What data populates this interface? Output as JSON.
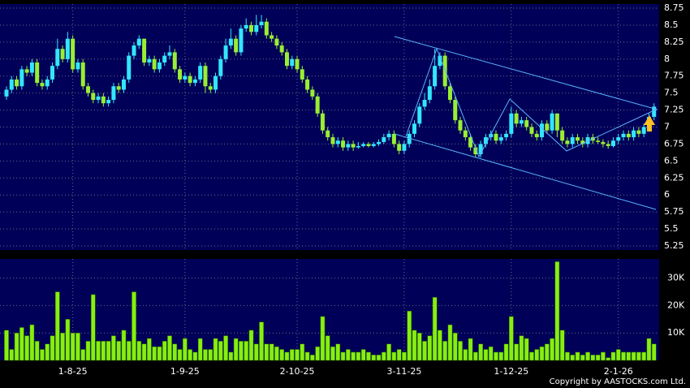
{
  "chart_data": {
    "type": "candlestick",
    "categories": [
      null,
      null,
      null,
      null,
      null,
      null,
      null,
      null,
      null,
      null,
      null,
      null,
      null,
      "1-8-25",
      null,
      null,
      null,
      null,
      null,
      null,
      null,
      null,
      null,
      null,
      null,
      null,
      null,
      null,
      null,
      null,
      null,
      null,
      null,
      null,
      null,
      "1-9-25",
      null,
      null,
      null,
      null,
      null,
      null,
      null,
      null,
      null,
      null,
      null,
      null,
      null,
      null,
      null,
      null,
      null,
      null,
      null,
      null,
      null,
      "2-10-25",
      null,
      null,
      null,
      null,
      null,
      null,
      null,
      null,
      null,
      null,
      null,
      null,
      null,
      null,
      null,
      null,
      null,
      null,
      null,
      null,
      "3-11-25",
      null,
      null,
      null,
      null,
      null,
      null,
      null,
      null,
      null,
      null,
      null,
      null,
      null,
      null,
      null,
      null,
      null,
      null,
      null,
      null,
      "1-12-25",
      null,
      null,
      null,
      null,
      null,
      null,
      null,
      null,
      null,
      null,
      null,
      null,
      null,
      null,
      null,
      null,
      null,
      null,
      null,
      null,
      "2-1-26",
      null,
      null,
      null,
      null,
      null,
      null,
      null
    ],
    "open": [
      7.45,
      7.55,
      7.7,
      7.6,
      7.85,
      7.8,
      7.95,
      7.65,
      7.6,
      7.7,
      7.9,
      8.15,
      8.0,
      8.3,
      7.85,
      7.95,
      7.6,
      7.5,
      7.4,
      7.45,
      7.35,
      7.4,
      7.6,
      7.55,
      7.7,
      8.05,
      8.2,
      8.3,
      7.95,
      8.0,
      7.85,
      7.95,
      8.05,
      8.1,
      7.85,
      7.7,
      7.75,
      7.65,
      7.7,
      7.9,
      7.6,
      7.55,
      7.75,
      8.0,
      8.2,
      8.3,
      8.1,
      8.45,
      8.5,
      8.4,
      8.5,
      8.55,
      8.35,
      8.3,
      8.2,
      8.1,
      7.9,
      8.0,
      7.85,
      7.7,
      7.55,
      7.45,
      7.2,
      6.95,
      6.85,
      6.75,
      6.8,
      6.7,
      6.75,
      6.7,
      6.72,
      6.75,
      6.72,
      6.75,
      6.78,
      6.85,
      6.9,
      6.75,
      6.65,
      6.75,
      6.9,
      7.05,
      7.3,
      7.4,
      7.6,
      7.9,
      8.05,
      7.6,
      7.4,
      7.1,
      6.95,
      6.85,
      6.7,
      6.6,
      6.75,
      6.85,
      6.9,
      6.8,
      6.85,
      6.9,
      7.2,
      7.05,
      7.1,
      7.0,
      6.9,
      6.85,
      7.05,
      6.95,
      7.2,
      6.95,
      6.8,
      6.75,
      6.85,
      6.8,
      6.75,
      6.85,
      6.8,
      6.78,
      6.75,
      6.72,
      6.8,
      6.85,
      6.9,
      6.85,
      6.95,
      6.9,
      7.0,
      7.15
    ],
    "high": [
      7.6,
      7.75,
      7.75,
      7.9,
      7.9,
      8.0,
      8.0,
      7.7,
      7.75,
      7.95,
      8.3,
      8.2,
      8.4,
      8.35,
      8.0,
      8.0,
      7.65,
      7.55,
      7.5,
      7.5,
      7.45,
      7.65,
      7.65,
      7.75,
      8.1,
      8.25,
      8.35,
      8.3,
      8.05,
      8.05,
      8.0,
      8.1,
      8.2,
      8.15,
      7.9,
      7.8,
      7.8,
      7.75,
      7.95,
      7.95,
      7.65,
      7.8,
      8.05,
      8.3,
      8.45,
      8.35,
      8.5,
      8.6,
      8.55,
      8.65,
      8.65,
      8.6,
      8.4,
      8.35,
      8.25,
      8.15,
      8.05,
      8.05,
      7.9,
      7.75,
      7.6,
      7.5,
      7.25,
      7.0,
      6.9,
      6.85,
      6.85,
      6.8,
      6.8,
      6.78,
      6.78,
      6.78,
      6.78,
      6.82,
      6.9,
      6.95,
      6.95,
      6.8,
      6.8,
      6.95,
      7.1,
      7.35,
      7.5,
      7.7,
      8.15,
      8.1,
      8.1,
      7.65,
      7.45,
      7.15,
      7.0,
      6.9,
      6.75,
      6.8,
      6.9,
      6.95,
      6.95,
      6.9,
      6.95,
      7.3,
      7.25,
      7.15,
      7.15,
      7.05,
      6.95,
      7.1,
      7.1,
      7.25,
      7.2,
      7.0,
      6.85,
      6.9,
      6.9,
      6.85,
      6.9,
      6.9,
      6.85,
      6.82,
      6.8,
      6.85,
      6.9,
      6.95,
      6.95,
      7.0,
      7.0,
      7.05,
      7.2,
      7.35
    ],
    "low": [
      7.4,
      7.5,
      7.55,
      7.55,
      7.75,
      7.75,
      7.6,
      7.55,
      7.55,
      7.65,
      7.85,
      7.95,
      7.95,
      7.8,
      7.8,
      7.55,
      7.45,
      7.35,
      7.35,
      7.3,
      7.3,
      7.35,
      7.5,
      7.5,
      7.65,
      8.0,
      8.15,
      7.9,
      7.9,
      7.8,
      7.8,
      7.9,
      8.0,
      7.8,
      7.65,
      7.65,
      7.6,
      7.6,
      7.65,
      7.5,
      7.5,
      7.5,
      7.7,
      7.95,
      8.15,
      8.05,
      8.05,
      8.4,
      8.35,
      8.35,
      8.45,
      8.3,
      8.25,
      8.15,
      8.05,
      7.85,
      7.85,
      7.8,
      7.65,
      7.5,
      7.4,
      7.15,
      6.9,
      6.8,
      6.7,
      6.7,
      6.65,
      6.65,
      6.65,
      6.68,
      6.7,
      6.7,
      6.7,
      6.72,
      6.75,
      6.8,
      6.7,
      6.6,
      6.6,
      6.7,
      6.85,
      7.0,
      7.25,
      7.35,
      7.55,
      7.85,
      7.55,
      7.35,
      7.05,
      6.9,
      6.8,
      6.65,
      6.55,
      6.55,
      6.7,
      6.8,
      6.75,
      6.75,
      6.8,
      6.85,
      7.0,
      7.0,
      6.95,
      6.85,
      6.8,
      6.8,
      6.9,
      6.9,
      6.85,
      6.75,
      6.7,
      6.7,
      6.75,
      6.7,
      6.7,
      6.75,
      6.75,
      6.7,
      6.68,
      6.7,
      6.75,
      6.8,
      6.8,
      6.8,
      6.85,
      6.85,
      6.95,
      7.1
    ],
    "close": [
      7.55,
      7.7,
      7.6,
      7.85,
      7.8,
      7.95,
      7.65,
      7.6,
      7.7,
      7.9,
      8.15,
      8.0,
      8.3,
      7.85,
      7.95,
      7.6,
      7.5,
      7.4,
      7.45,
      7.35,
      7.4,
      7.6,
      7.55,
      7.7,
      8.05,
      8.2,
      8.3,
      7.95,
      8.0,
      7.85,
      7.95,
      8.05,
      8.1,
      7.85,
      7.7,
      7.75,
      7.65,
      7.7,
      7.9,
      7.6,
      7.55,
      7.75,
      8.0,
      8.2,
      8.3,
      8.1,
      8.45,
      8.5,
      8.4,
      8.5,
      8.55,
      8.35,
      8.3,
      8.2,
      8.1,
      7.9,
      8.0,
      7.85,
      7.7,
      7.55,
      7.45,
      7.2,
      6.95,
      6.85,
      6.75,
      6.8,
      6.7,
      6.75,
      6.7,
      6.72,
      6.75,
      6.72,
      6.75,
      6.78,
      6.85,
      6.9,
      6.75,
      6.65,
      6.75,
      6.9,
      7.05,
      7.3,
      7.4,
      7.6,
      7.9,
      8.05,
      7.6,
      7.4,
      7.1,
      6.95,
      6.85,
      6.7,
      6.6,
      6.75,
      6.85,
      6.9,
      6.8,
      6.85,
      6.9,
      7.2,
      7.05,
      7.1,
      7.0,
      6.9,
      6.85,
      7.05,
      6.95,
      7.2,
      6.95,
      6.8,
      6.75,
      6.85,
      6.8,
      6.75,
      6.85,
      6.8,
      6.78,
      6.75,
      6.72,
      6.8,
      6.85,
      6.9,
      6.85,
      6.95,
      6.9,
      7.0,
      7.15,
      7.3
    ],
    "volume": [
      11000,
      4000,
      10000,
      12000,
      9000,
      13000,
      7000,
      4000,
      6000,
      9000,
      25000,
      10000,
      15000,
      10000,
      10000,
      4000,
      7000,
      24000,
      7000,
      7000,
      7000,
      9000,
      7000,
      11000,
      7000,
      25000,
      7000,
      6000,
      8000,
      5000,
      5000,
      7000,
      9000,
      6000,
      4000,
      8000,
      4000,
      3000,
      8000,
      4000,
      4000,
      8000,
      7000,
      9000,
      3000,
      8000,
      7000,
      7000,
      11000,
      6000,
      14000,
      6000,
      6000,
      5000,
      4000,
      3000,
      4000,
      4000,
      6000,
      3000,
      2000,
      5000,
      16000,
      9000,
      5000,
      6000,
      3000,
      4000,
      3000,
      3000,
      4000,
      3000,
      2000,
      2000,
      3000,
      6000,
      3000,
      4000,
      3000,
      18000,
      11000,
      10000,
      7000,
      9000,
      23000,
      11000,
      7000,
      13000,
      10000,
      7000,
      4000,
      8000,
      3000,
      6000,
      4000,
      5000,
      3000,
      3000,
      6000,
      16000,
      6000,
      9000,
      8000,
      3000,
      4000,
      5000,
      6000,
      8000,
      36000,
      11000,
      3000,
      2000,
      3000,
      2000,
      3000,
      2000,
      2000,
      3000,
      1000,
      3000,
      4000,
      3000,
      3000,
      3000,
      3000,
      3000,
      8000,
      6000
    ],
    "up_color": "#33e6ff",
    "down_color": "#99ee33",
    "volume_color": "#88ee11",
    "ylim": [
      5.19,
      8.81
    ],
    "yticks": [
      5.25,
      5.5,
      5.75,
      6,
      6.25,
      6.5,
      6.75,
      7,
      7.25,
      7.5,
      7.75,
      8,
      8.25,
      8.5,
      8.75
    ],
    "y2lim": [
      0,
      37000
    ],
    "y2ticks": [
      {
        "value": 10000,
        "label": "10K"
      },
      {
        "value": 20000,
        "label": "20K"
      },
      {
        "value": 30000,
        "label": "30K"
      }
    ],
    "grid": true,
    "copyright": "Copyright by AASTOCKS.com Ltd."
  }
}
